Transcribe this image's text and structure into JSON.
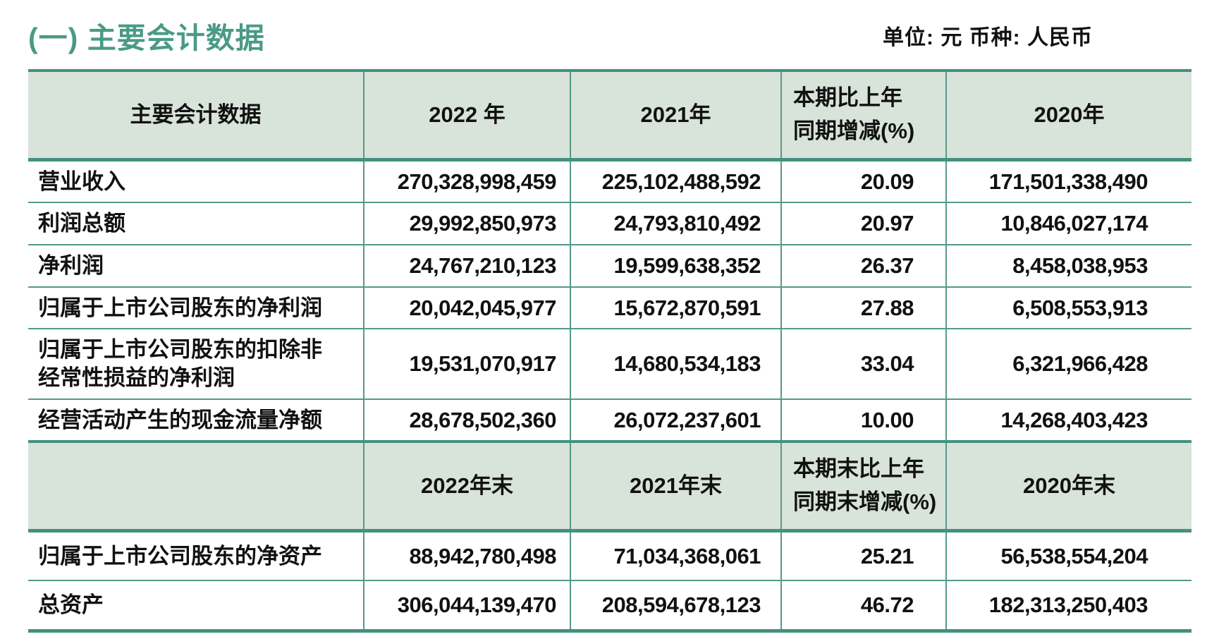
{
  "title": "(一) 主要会计数据",
  "unit_label": "单位: 元 币种: 人民币",
  "colors": {
    "accent_green": "#4a9a85",
    "table_border": "#55998a",
    "table_border_thick": "#43907e",
    "header_background": "#d8e3da"
  },
  "table": {
    "header1": [
      "主要会计数据",
      "2022 年",
      "2021年",
      "本期比上年\n同期增减(%)",
      "2020年"
    ],
    "section1_rows": [
      [
        "营业收入",
        "270,328,998,459",
        "225,102,488,592",
        "20.09",
        "171,501,338,490"
      ],
      [
        "利润总额",
        "29,992,850,973",
        "24,793,810,492",
        "20.97",
        "10,846,027,174"
      ],
      [
        "净利润",
        "24,767,210,123",
        "19,599,638,352",
        "26.37",
        "8,458,038,953"
      ],
      [
        "归属于上市公司股东的净利润",
        "20,042,045,977",
        "15,672,870,591",
        "27.88",
        "6,508,553,913"
      ],
      [
        "归属于上市公司股东的扣除非\n经常性损益的净利润",
        "19,531,070,917",
        "14,680,534,183",
        "33.04",
        "6,321,966,428"
      ],
      [
        "经营活动产生的现金流量净额",
        "28,678,502,360",
        "26,072,237,601",
        "10.00",
        "14,268,403,423"
      ]
    ],
    "header2": [
      "",
      "2022年末",
      "2021年末",
      "本期末比上年\n同期末增减(%)",
      "2020年末"
    ],
    "section2_rows": [
      [
        "归属于上市公司股东的净资产",
        "88,942,780,498",
        "71,034,368,061",
        "25.21",
        "56,538,554,204"
      ],
      [
        "总资产",
        "306,044,139,470",
        "208,594,678,123",
        "46.72",
        "182,313,250,403"
      ]
    ]
  }
}
